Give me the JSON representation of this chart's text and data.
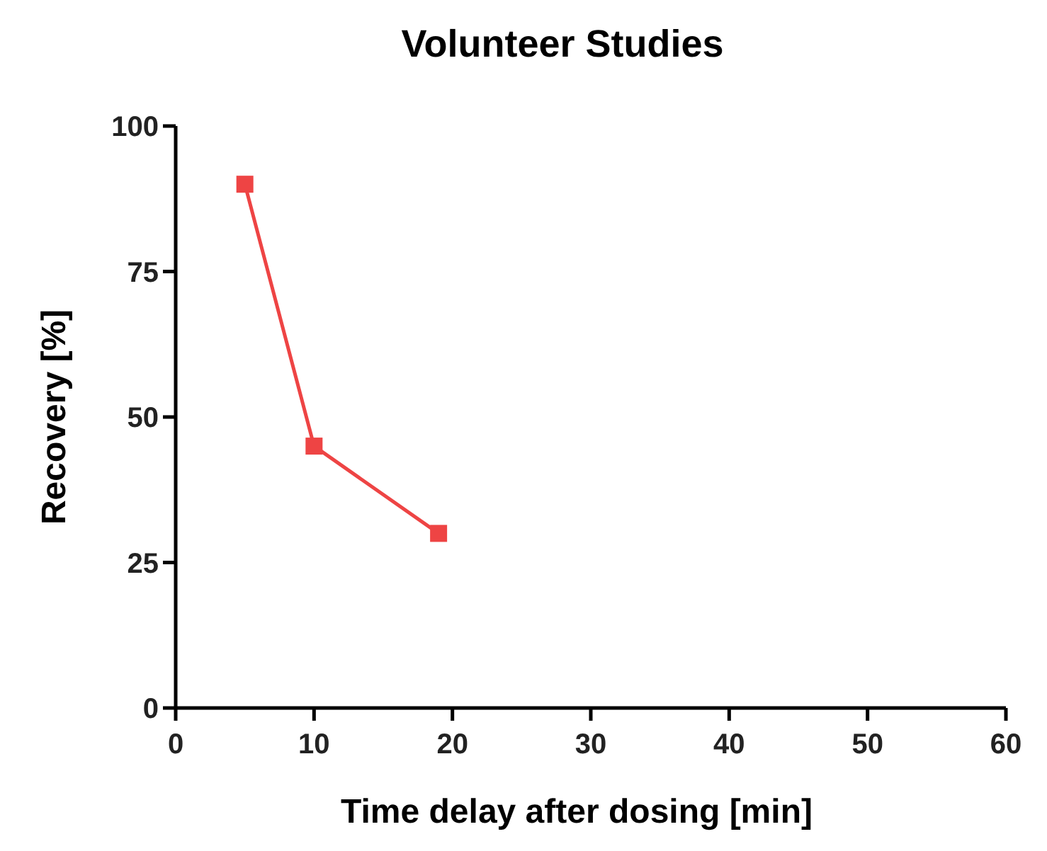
{
  "chart_data": {
    "type": "line",
    "title": "Volunteer Studies",
    "xlabel": "Time delay after dosing [min]",
    "ylabel": "Recovery [%]",
    "x": [
      5,
      10,
      19
    ],
    "series": [
      {
        "color": "#ee4444",
        "values": [
          90,
          45,
          30
        ]
      }
    ],
    "xlim": [
      0,
      60
    ],
    "xticks": [
      0,
      10,
      20,
      30,
      40,
      50,
      60
    ],
    "ylim": [
      0,
      100
    ],
    "yticks": [
      0,
      25,
      50,
      75,
      100
    ],
    "marker": "square",
    "line_style": "solid",
    "grid": false
  }
}
